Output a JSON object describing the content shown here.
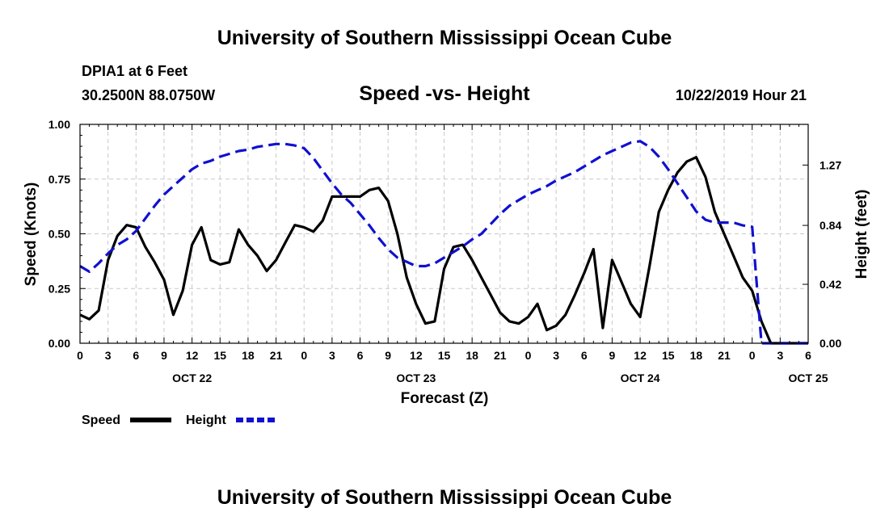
{
  "header": {
    "title": "University of Southern Mississippi Ocean Cube",
    "station": "DPIA1 at 6 Feet",
    "coords": "30.2500N 88.0750W",
    "chart_title": "Speed -vs- Height",
    "timestamp": "10/22/2019 Hour 21"
  },
  "footer": {
    "title": "University of Southern Mississippi Ocean Cube"
  },
  "colors": {
    "speed": "#000000",
    "height": "#1010d0",
    "grid": "#c8c8c8"
  },
  "chart_data": {
    "type": "line",
    "title": "Speed -vs- Height",
    "xlabel": "Forecast (Z)",
    "ylabel": "Speed (Knots)",
    "y2label": "Height (feet)",
    "x_unit": "hours from 2019-10-22 00Z",
    "xlim": [
      0,
      78
    ],
    "ylim": [
      0,
      1
    ],
    "y2lim": [
      0,
      1.56
    ],
    "x_ticks": [
      0,
      3,
      6,
      9,
      12,
      15,
      18,
      21,
      24,
      27,
      30,
      33,
      36,
      39,
      42,
      45,
      48,
      51,
      54,
      57,
      60,
      63,
      66,
      69,
      72,
      75,
      78
    ],
    "x_tick_labels": [
      "0",
      "3",
      "6",
      "9",
      "12",
      "15",
      "18",
      "21",
      "0",
      "3",
      "6",
      "9",
      "12",
      "15",
      "18",
      "21",
      "0",
      "3",
      "6",
      "9",
      "12",
      "15",
      "18",
      "21",
      "0",
      "3",
      "6"
    ],
    "date_labels": [
      {
        "x": 12,
        "label": "OCT 22"
      },
      {
        "x": 36,
        "label": "OCT 23"
      },
      {
        "x": 60,
        "label": "OCT 24"
      },
      {
        "x": 78,
        "label": "OCT 25"
      }
    ],
    "y_ticks": [
      0,
      0.25,
      0.5,
      0.75,
      1.0
    ],
    "y_tick_labels": [
      "0.00",
      "0.25",
      "0.50",
      "0.75",
      "1.00"
    ],
    "y2_ticks": [
      0,
      0.42,
      0.84,
      1.27
    ],
    "y2_tick_labels": [
      "0.00",
      "0.42",
      "0.84",
      "1.27"
    ],
    "grid": true,
    "series": [
      {
        "name": "Speed",
        "axis": "left",
        "style": "solid",
        "x": [
          0,
          1,
          2,
          3,
          4,
          5,
          6,
          7,
          8,
          9,
          10,
          11,
          12,
          13,
          14,
          15,
          16,
          17,
          18,
          19,
          20,
          21,
          22,
          23,
          24,
          25,
          26,
          27,
          28,
          29,
          30,
          31,
          32,
          33,
          34,
          35,
          36,
          37,
          38,
          39,
          40,
          41,
          42,
          43,
          44,
          45,
          46,
          47,
          48,
          49,
          50,
          51,
          52,
          53,
          54,
          55,
          56,
          57,
          58,
          59,
          60,
          61,
          62,
          63,
          64,
          65,
          66,
          67,
          68,
          69,
          70,
          71,
          72,
          73,
          74,
          75,
          76,
          77,
          78
        ],
        "values": [
          0.13,
          0.11,
          0.15,
          0.38,
          0.49,
          0.54,
          0.53,
          0.44,
          0.37,
          0.29,
          0.13,
          0.24,
          0.45,
          0.53,
          0.38,
          0.36,
          0.37,
          0.52,
          0.45,
          0.4,
          0.33,
          0.38,
          0.46,
          0.54,
          0.53,
          0.51,
          0.56,
          0.67,
          0.67,
          0.67,
          0.67,
          0.7,
          0.71,
          0.65,
          0.5,
          0.3,
          0.18,
          0.09,
          0.1,
          0.34,
          0.44,
          0.45,
          0.38,
          0.3,
          0.22,
          0.14,
          0.1,
          0.09,
          0.12,
          0.18,
          0.06,
          0.08,
          0.13,
          0.22,
          0.32,
          0.43,
          0.07,
          0.38,
          0.28,
          0.18,
          0.12,
          0.35,
          0.6,
          0.7,
          0.78,
          0.83,
          0.85,
          0.76,
          0.6,
          0.5,
          0.4,
          0.3,
          0.24,
          0.1,
          0.0,
          0.0,
          0.0,
          0.0,
          0.0
        ]
      },
      {
        "name": "Height",
        "axis": "right",
        "style": "dashed",
        "x": [
          0,
          1,
          2,
          3,
          4,
          5,
          6,
          7,
          8,
          9,
          10,
          11,
          12,
          13,
          14,
          15,
          16,
          17,
          18,
          19,
          20,
          21,
          22,
          23,
          24,
          25,
          26,
          27,
          28,
          29,
          30,
          31,
          32,
          33,
          34,
          35,
          36,
          37,
          38,
          39,
          40,
          41,
          42,
          43,
          44,
          45,
          46,
          47,
          48,
          49,
          50,
          51,
          52,
          53,
          54,
          55,
          56,
          57,
          58,
          59,
          60,
          61,
          62,
          63,
          64,
          65,
          66,
          67,
          68,
          69,
          70,
          71,
          72,
          73,
          74,
          75,
          76,
          77,
          78
        ],
        "values": [
          0.55,
          0.51,
          0.57,
          0.64,
          0.7,
          0.74,
          0.8,
          0.89,
          0.98,
          1.06,
          1.12,
          1.18,
          1.24,
          1.28,
          1.3,
          1.33,
          1.35,
          1.37,
          1.38,
          1.4,
          1.41,
          1.42,
          1.42,
          1.41,
          1.39,
          1.32,
          1.23,
          1.14,
          1.06,
          1.0,
          0.92,
          0.84,
          0.75,
          0.67,
          0.61,
          0.58,
          0.55,
          0.55,
          0.57,
          0.61,
          0.65,
          0.69,
          0.74,
          0.78,
          0.85,
          0.92,
          0.98,
          1.02,
          1.06,
          1.09,
          1.12,
          1.16,
          1.19,
          1.22,
          1.26,
          1.3,
          1.34,
          1.37,
          1.4,
          1.43,
          1.44,
          1.4,
          1.33,
          1.24,
          1.14,
          1.04,
          0.94,
          0.88,
          0.86,
          0.86,
          0.86,
          0.84,
          0.83,
          0.0,
          0.0,
          0.0,
          0.0,
          0.0,
          0.0
        ]
      }
    ],
    "legend": [
      {
        "label": "Speed",
        "style": "solid"
      },
      {
        "label": "Height",
        "style": "dashed"
      }
    ]
  }
}
